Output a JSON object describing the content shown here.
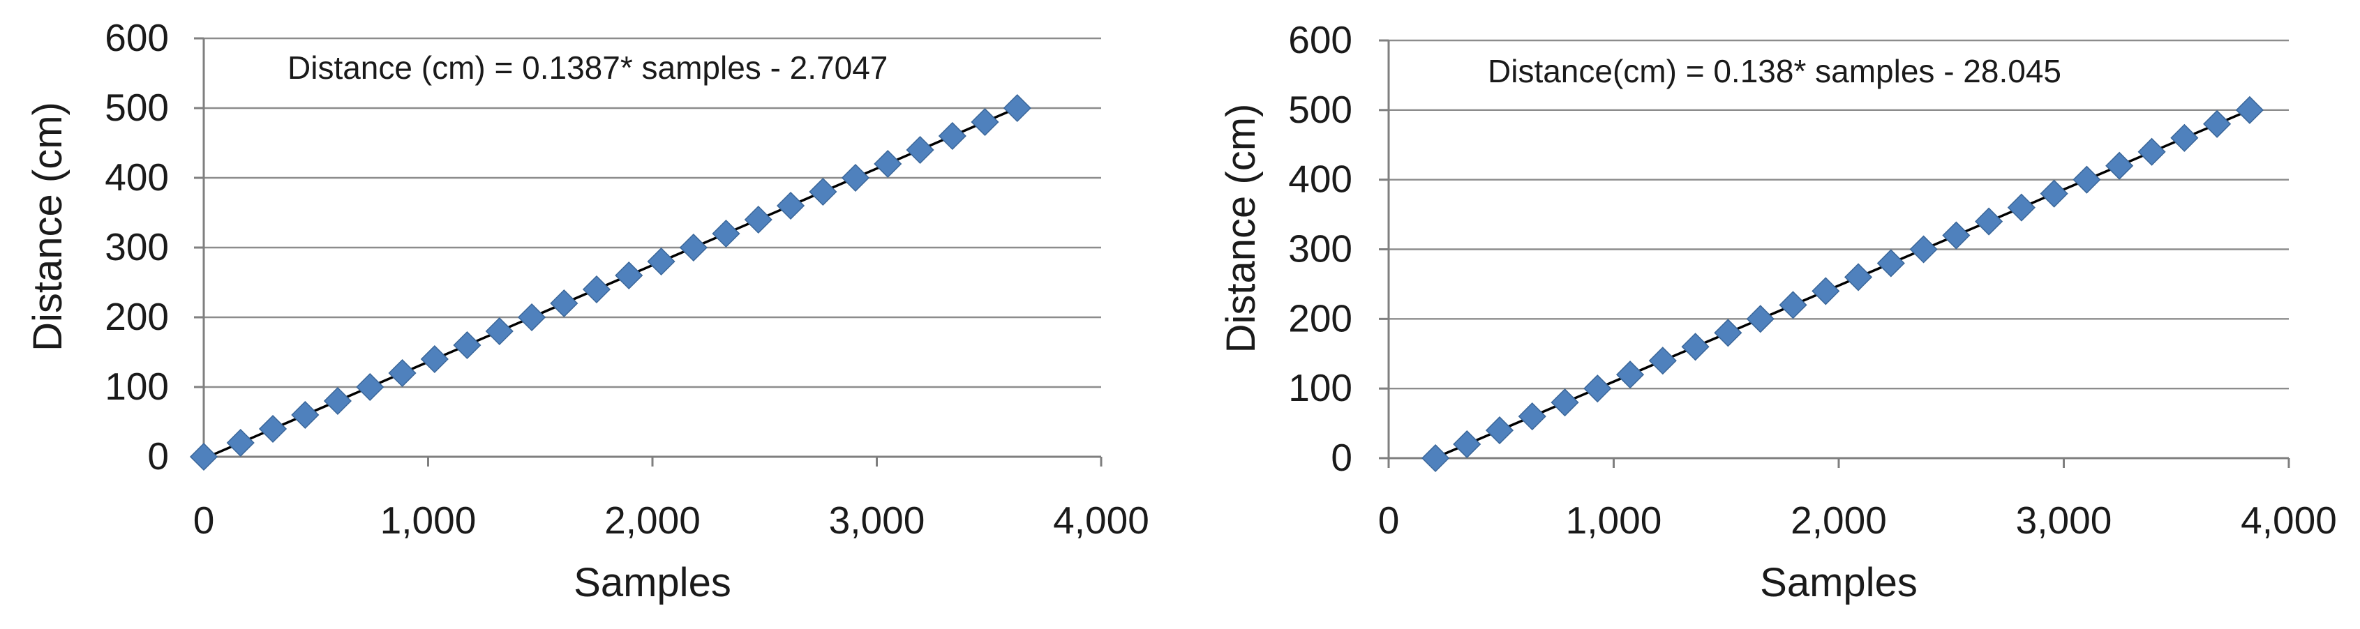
{
  "colors": {
    "marker": "#4F81BD",
    "marker_edge": "#3A6699",
    "trendline": "#000000",
    "gridline": "#8C8C8C",
    "axis": "#7F7F7F",
    "text": "#1A1A1A"
  },
  "chart_data": [
    {
      "type": "scatter",
      "title": "",
      "annotation": "Distance (cm) = 0.1387* samples - 2.7047",
      "xlabel": "Samples",
      "ylabel": "Distance (cm)",
      "xlim": [
        0,
        4000
      ],
      "ylim": [
        0,
        600
      ],
      "x_ticks": [
        0,
        1000,
        2000,
        3000,
        4000
      ],
      "x_tick_labels": [
        "0",
        "1,000",
        "2,000",
        "3,000",
        "4,000"
      ],
      "y_ticks": [
        0,
        100,
        200,
        300,
        400,
        500,
        600
      ],
      "y_tick_labels": [
        "0",
        "100",
        "200",
        "300",
        "400",
        "500",
        "600"
      ],
      "grid": "horizontal",
      "legend": "none",
      "marker": "diamond",
      "trendline": {
        "slope": 0.1387,
        "intercept": -2.7047,
        "x_range": [
          0,
          3625
        ]
      },
      "points": [
        [
          0,
          0
        ],
        [
          164,
          20
        ],
        [
          308,
          40
        ],
        [
          452,
          60
        ],
        [
          597,
          80
        ],
        [
          741,
          100
        ],
        [
          885,
          120
        ],
        [
          1029,
          140
        ],
        [
          1174,
          160
        ],
        [
          1318,
          180
        ],
        [
          1462,
          200
        ],
        [
          1606,
          220
        ],
        [
          1751,
          240
        ],
        [
          1895,
          260
        ],
        [
          2039,
          280
        ],
        [
          2183,
          300
        ],
        [
          2328,
          320
        ],
        [
          2472,
          340
        ],
        [
          2616,
          360
        ],
        [
          2760,
          380
        ],
        [
          2905,
          400
        ],
        [
          3049,
          420
        ],
        [
          3193,
          440
        ],
        [
          3337,
          460
        ],
        [
          3482,
          480
        ],
        [
          3626,
          500
        ]
      ]
    },
    {
      "type": "scatter",
      "title": "",
      "annotation": "Distance(cm) = 0.138* samples - 28.045",
      "xlabel": "Samples",
      "ylabel": "Distance (cm)",
      "xlim": [
        0,
        4000
      ],
      "ylim": [
        0,
        600
      ],
      "x_ticks": [
        0,
        1000,
        2000,
        3000,
        4000
      ],
      "x_tick_labels": [
        "0",
        "1,000",
        "2,000",
        "3,000",
        "4,000"
      ],
      "y_ticks": [
        0,
        100,
        200,
        300,
        400,
        500,
        600
      ],
      "y_tick_labels": [
        "0",
        "100",
        "200",
        "300",
        "400",
        "500",
        "600"
      ],
      "grid": "horizontal",
      "legend": "none",
      "marker": "diamond",
      "trendline": {
        "slope": 0.138,
        "intercept": -28.045,
        "x_range": [
          203,
          3826
        ]
      },
      "points": [
        [
          208,
          0
        ],
        [
          348,
          20
        ],
        [
          493,
          40
        ],
        [
          638,
          60
        ],
        [
          783,
          80
        ],
        [
          928,
          100
        ],
        [
          1073,
          120
        ],
        [
          1218,
          140
        ],
        [
          1363,
          160
        ],
        [
          1508,
          180
        ],
        [
          1652,
          200
        ],
        [
          1797,
          220
        ],
        [
          1942,
          240
        ],
        [
          2087,
          260
        ],
        [
          2232,
          280
        ],
        [
          2377,
          300
        ],
        [
          2522,
          320
        ],
        [
          2667,
          340
        ],
        [
          2812,
          360
        ],
        [
          2957,
          380
        ],
        [
          3102,
          400
        ],
        [
          3247,
          420
        ],
        [
          3391,
          440
        ],
        [
          3536,
          460
        ],
        [
          3681,
          480
        ],
        [
          3826,
          500
        ]
      ]
    }
  ]
}
